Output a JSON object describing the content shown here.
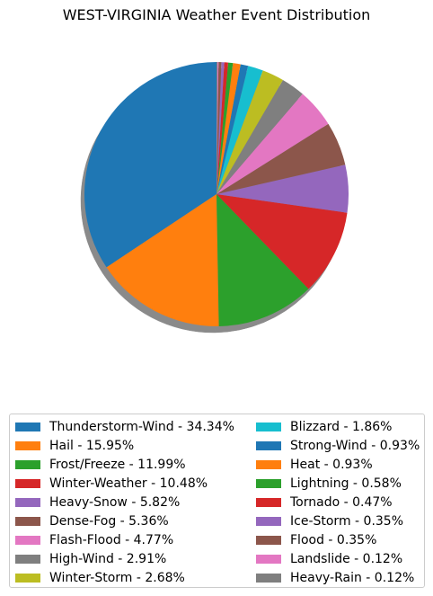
{
  "chart_data": {
    "type": "pie",
    "title": "WEST-VIRGINIA Weather Event Distribution",
    "shadow": true,
    "start_angle": "90 (top), counter-clockwise",
    "legend_position": "bottom, two columns",
    "slices": [
      {
        "label": "Thunderstorm-Wind - 34.34%",
        "value": 34.34,
        "color": "#1f77b4"
      },
      {
        "label": "Hail - 15.95%",
        "value": 15.95,
        "color": "#ff7f0e"
      },
      {
        "label": "Frost/Freeze - 11.99%",
        "value": 11.99,
        "color": "#2ca02c"
      },
      {
        "label": "Winter-Weather - 10.48%",
        "value": 10.48,
        "color": "#d62728"
      },
      {
        "label": "Heavy-Snow - 5.82%",
        "value": 5.82,
        "color": "#9467bd"
      },
      {
        "label": "Dense-Fog - 5.36%",
        "value": 5.36,
        "color": "#8c564b"
      },
      {
        "label": "Flash-Flood - 4.77%",
        "value": 4.77,
        "color": "#e377c2"
      },
      {
        "label": "High-Wind - 2.91%",
        "value": 2.91,
        "color": "#7f7f7f"
      },
      {
        "label": "Winter-Storm - 2.68%",
        "value": 2.68,
        "color": "#bcbd22"
      },
      {
        "label": "Blizzard - 1.86%",
        "value": 1.86,
        "color": "#17becf"
      },
      {
        "label": "Strong-Wind - 0.93%",
        "value": 0.93,
        "color": "#1f77b4"
      },
      {
        "label": "Heat - 0.93%",
        "value": 0.93,
        "color": "#ff7f0e"
      },
      {
        "label": "Lightning - 0.58%",
        "value": 0.58,
        "color": "#2ca02c"
      },
      {
        "label": "Tornado - 0.47%",
        "value": 0.47,
        "color": "#d62728"
      },
      {
        "label": "Ice-Storm - 0.35%",
        "value": 0.35,
        "color": "#9467bd"
      },
      {
        "label": "Flood - 0.35%",
        "value": 0.35,
        "color": "#8c564b"
      },
      {
        "label": "Landslide - 0.12%",
        "value": 0.12,
        "color": "#e377c2"
      },
      {
        "label": "Heavy-Rain - 0.12%",
        "value": 0.12,
        "color": "#7f7f7f"
      }
    ]
  }
}
